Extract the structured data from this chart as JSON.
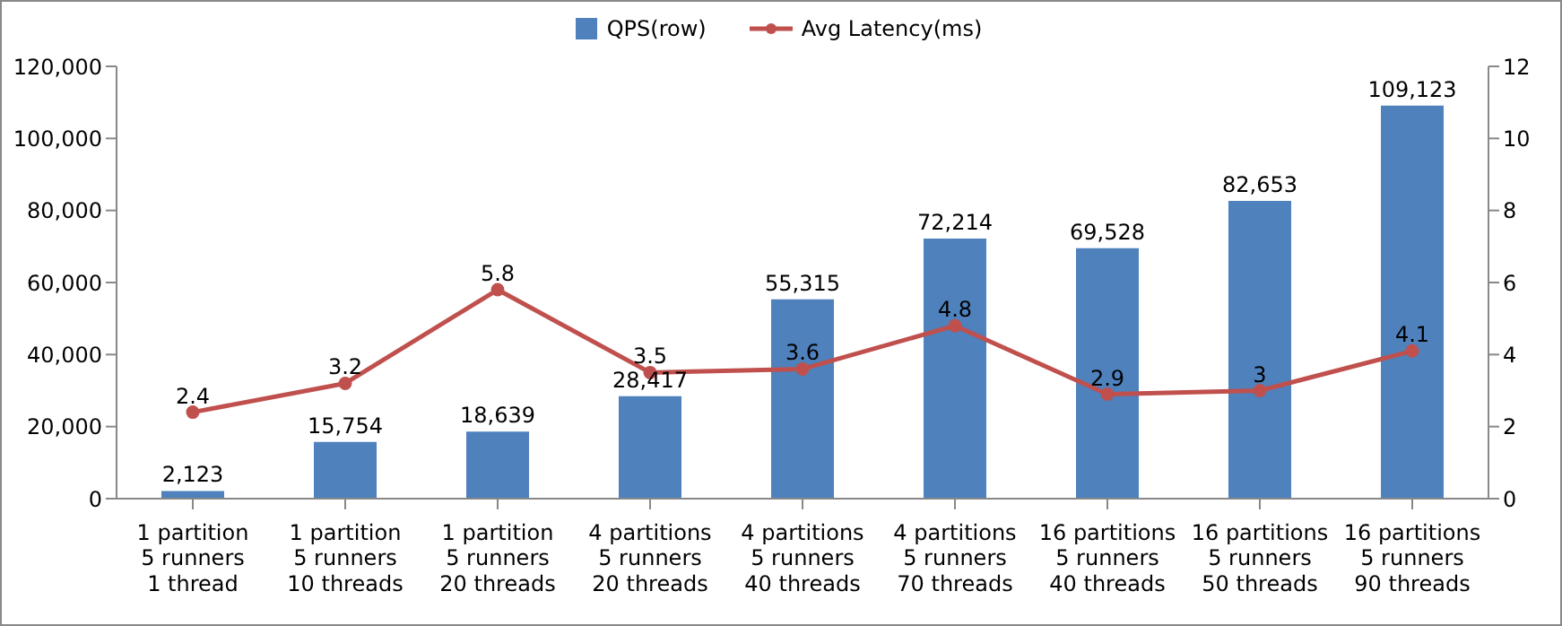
{
  "chart_data": {
    "type": "bar",
    "categories": [
      "1 partition\n5 runners\n1 thread",
      "1 partition\n5 runners\n10 threads",
      "1 partition\n5 runners\n20 threads",
      "4 partitions\n5 runners\n20 threads",
      "4 partitions\n5 runners\n40 threads",
      "4 partitions\n5 runners\n70 threads",
      "16 partitions\n5 runners\n40 threads",
      "16 partitions\n5 runners\n50 threads",
      "16 partitions\n5 runners\n90 threads"
    ],
    "series": [
      {
        "name": "QPS(row)",
        "color": "#4f81bd",
        "values": [
          2123,
          15754,
          18639,
          28417,
          55315,
          72214,
          69528,
          82653,
          109123
        ],
        "value_labels": [
          "2,123",
          "15,754",
          "18,639",
          "28,417",
          "55,315",
          "72,214",
          "69,528",
          "82,653",
          "109,123"
        ]
      },
      {
        "name": "Avg Latency(ms)",
        "type": "line",
        "axis": "y2",
        "color": "#c0504d",
        "marker": "circle",
        "values": [
          2.4,
          3.2,
          5.8,
          3.5,
          3.6,
          4.8,
          2.9,
          3,
          4.1
        ]
      }
    ],
    "ylim": [
      0,
      120000
    ],
    "yticks": [
      0,
      {
        "value": 20000,
        "label": "20,000"
      },
      {
        "value": 40000,
        "label": "40,000"
      },
      {
        "value": 60000,
        "label": "60,000"
      },
      {
        "value": 80000,
        "label": "80,000"
      },
      {
        "value": 100000,
        "label": "100,000"
      },
      {
        "value": 120000,
        "label": "120,000"
      }
    ],
    "y2lim": [
      0,
      12
    ],
    "y2ticks": [
      0,
      2,
      4,
      6,
      8,
      10,
      12
    ],
    "data_labels": true,
    "legend": "top",
    "grid": false
  }
}
